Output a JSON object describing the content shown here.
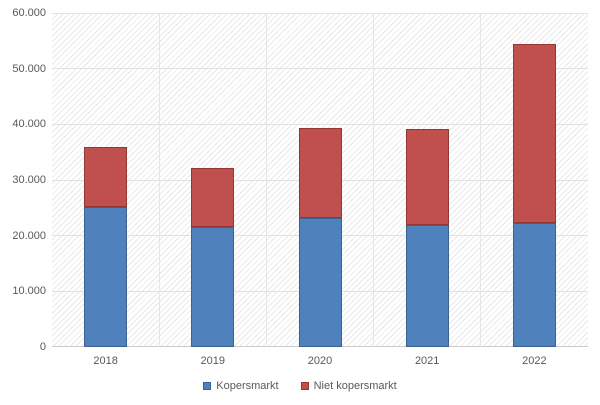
{
  "chart_data": {
    "type": "bar",
    "stacked": true,
    "title": "",
    "categories": [
      "2018",
      "2019",
      "2020",
      "2021",
      "2022"
    ],
    "series": [
      {
        "name": "Kopersmarkt",
        "color": "#4f81bd",
        "border_color": "#3a618f",
        "values": [
          25200,
          21600,
          23100,
          21900,
          22200
        ]
      },
      {
        "name": "Niet kopersmarkt",
        "color": "#c0504d",
        "border_color": "#943634",
        "values": [
          10800,
          10600,
          16200,
          17200,
          32200
        ]
      }
    ],
    "totals": [
      36000,
      32200,
      39300,
      39100,
      54400
    ],
    "xlabel": "",
    "ylabel": "",
    "ylim": [
      0,
      60000
    ],
    "ytick_step": 10000,
    "ytick_labels": [
      "0",
      "10.000",
      "20.000",
      "30.000",
      "40.000",
      "50.000",
      "60.000"
    ],
    "grid": true,
    "plot_background": "diagonal-hatch",
    "gridline_color": "#e2e2e2",
    "text_color": "#595959",
    "legend_position": "bottom"
  }
}
